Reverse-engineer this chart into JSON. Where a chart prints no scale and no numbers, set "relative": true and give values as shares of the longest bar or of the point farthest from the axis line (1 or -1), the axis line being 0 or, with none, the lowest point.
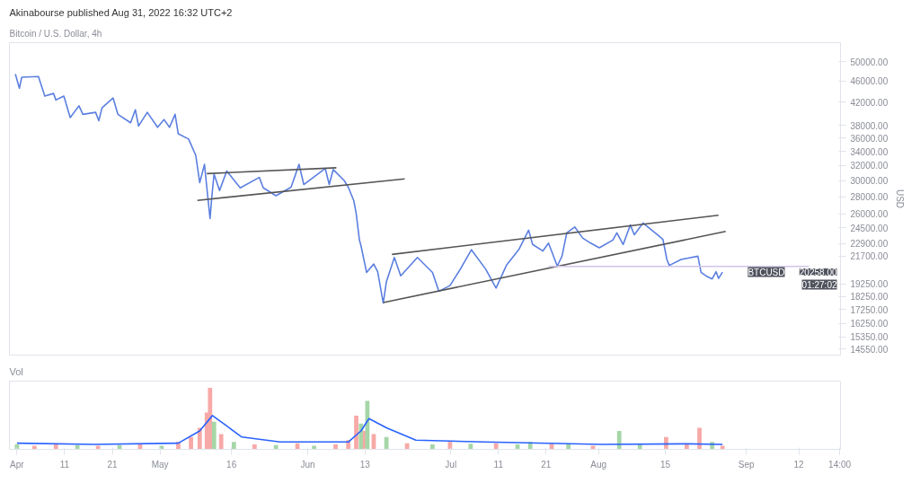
{
  "chart_data": [
    {
      "type": "line",
      "title": "Akinabourse published Aug 31, 2022 16:32 UTC+2",
      "subtitle": "Bitcoin / U.S. Dollar, 4h",
      "ylabel": "USD",
      "log": "y",
      "grid": false,
      "tick_labels": "y",
      "xlim": [
        "2022-03-30T10:00",
        "2022-09-20T18:00"
      ],
      "ylim": [
        14190,
        54230
      ],
      "yticks": [
        {
          "value": 14550,
          "label": "14550.00"
        },
        {
          "value": 15350,
          "label": "15350.00"
        },
        {
          "value": 16250,
          "label": "16250.00"
        },
        {
          "value": 17250,
          "label": "17250.00"
        },
        {
          "value": 18250,
          "label": "18250.00"
        },
        {
          "value": 19250,
          "label": "19250.00"
        },
        {
          "value": 21700,
          "label": "21700.00"
        },
        {
          "value": 22900,
          "label": "22900.00"
        },
        {
          "value": 24500,
          "label": "24500.00"
        },
        {
          "value": 26000,
          "label": "26000.00"
        },
        {
          "value": 28000,
          "label": "28000.00"
        },
        {
          "value": 30000,
          "label": "30000.00"
        },
        {
          "value": 32000,
          "label": "32000.00"
        },
        {
          "value": 34000,
          "label": "34000.00"
        },
        {
          "value": 36000,
          "label": "36000.00"
        },
        {
          "value": 38000,
          "label": "38000.00"
        },
        {
          "value": 42000,
          "label": "42000.00"
        },
        {
          "value": 46000,
          "label": "46000.00"
        },
        {
          "value": 50000,
          "label": "50000.00"
        }
      ],
      "series": [
        {
          "color": "#5b7fe0",
          "x": [
            "2022-03-31T16:00",
            "2022-04-01T12:00",
            "2022-04-02",
            "2022-04-05T12:00",
            "2022-04-06T20:00",
            "2022-04-08T16:00",
            "2022-04-09T04:00",
            "2022-04-10T20:00",
            "2022-04-12T04:00",
            "2022-04-14",
            "2022-04-14T20:00",
            "2022-04-17T12:00",
            "2022-04-18T04:00",
            "2022-04-18T20:00",
            "2022-04-21T04:00",
            "2022-04-22T04:00",
            "2022-04-24T20:00",
            "2022-04-25T20:00",
            "2022-04-26T12:00",
            "2022-04-28T08:00",
            "2022-04-30T12:00",
            "2022-05-01T20:00",
            "2022-05-03",
            "2022-05-04T04:00",
            "2022-05-04T20:00",
            "2022-05-07",
            "2022-05-08T12:00",
            "2022-05-09T08:00",
            "2022-05-10T08:00",
            "2022-05-10T20:00",
            "2022-05-11T12:00",
            "2022-05-11T20:00",
            "2022-05-12T08:00",
            "2022-05-13T12:00",
            "2022-05-15",
            "2022-05-17T20:00",
            "2022-05-21T20:00",
            "2022-05-22T16:00",
            "2022-05-25T08:00",
            "2022-05-28T12:00",
            "2022-05-30T04:00",
            "2022-05-31T04:00",
            "2022-06-04T16:00",
            "2022-06-05T12:00",
            "2022-06-06T08:00",
            "2022-06-08T16:00",
            "2022-06-09T12:00",
            "2022-06-10T16:00",
            "2022-06-11T04:00",
            "2022-06-11T20:00",
            "2022-06-12T04:00",
            "2022-06-13T08:00",
            "2022-06-14T20:00",
            "2022-06-15T16:00",
            "2022-06-16T20:00",
            "2022-06-17T12:00",
            "2022-06-19T04:00",
            "2022-06-20T12:00",
            "2022-06-24",
            "2022-06-27T04:00",
            "2022-06-28T12:00",
            "2022-06-30T20:00",
            "2022-07-02T20:00",
            "2022-07-05T08:00",
            "2022-07-08T08:00",
            "2022-07-10T12:00",
            "2022-07-12T16:00",
            "2022-07-15T08:00",
            "2022-07-17T08:00",
            "2022-07-18T04:00",
            "2022-07-20T08:00",
            "2022-07-21T12:00",
            "2022-07-23T08:00",
            "2022-07-24T08:00",
            "2022-07-25T08:00",
            "2022-07-27",
            "2022-07-28T16:00",
            "2022-07-30T08:00",
            "2022-08-01T04:00",
            "2022-08-04",
            "2022-08-04T20:00",
            "2022-08-06T04:00",
            "2022-08-07T16:00",
            "2022-08-08T12:00",
            "2022-08-10T08:00",
            "2022-08-13T08:00",
            "2022-08-14T12:00",
            "2022-08-15T08:00",
            "2022-08-15T20:00",
            "2022-08-18T08:00",
            "2022-08-21T20:00",
            "2022-08-22T12:00",
            "2022-08-23T12:00",
            "2022-08-24T20:00",
            "2022-08-25T16:00",
            "2022-08-26T04:00",
            "2022-08-27"
          ],
          "values": [
            47400,
            44590,
            46760,
            46890,
            43120,
            43600,
            42400,
            43120,
            39320,
            41350,
            39870,
            40210,
            38780,
            41000,
            42760,
            39870,
            38450,
            40660,
            37920,
            40210,
            37710,
            38990,
            37710,
            39870,
            36670,
            35860,
            33440,
            29740,
            32160,
            29080,
            25500,
            27730,
            30840,
            28760,
            31270,
            29080,
            30410,
            29080,
            28120,
            29160,
            32160,
            29500,
            31620,
            29500,
            31450,
            29990,
            29160,
            27500,
            26010,
            23250,
            22680,
            20230,
            20970,
            20290,
            17740,
            19450,
            21570,
            19940,
            21570,
            20230,
            18660,
            19120,
            20400,
            22300,
            20510,
            18920,
            20850,
            22360,
            24250,
            22810,
            22180,
            22940,
            20800,
            21690,
            23980,
            24590,
            23450,
            22940,
            22490,
            23250,
            23980,
            22810,
            24800,
            23780,
            25010,
            23780,
            23320,
            21390,
            20850,
            21390,
            21690,
            20230,
            19940,
            19670,
            20290,
            19720,
            20258
          ]
        },
        {
          "color": "#555555",
          "x": [
            "2022-05-10T20:00",
            "2022-06-07"
          ],
          "values": [
            30920,
            31700
          ]
        },
        {
          "color": "#555555",
          "x": [
            "2022-05-08T20:00",
            "2022-06-21T08:00"
          ],
          "values": [
            27560,
            30230
          ]
        },
        {
          "color": "#555555",
          "x": [
            "2022-06-18T16:00",
            "2022-08-26T04:00"
          ],
          "values": [
            21860,
            25860
          ]
        },
        {
          "color": "#555555",
          "x": [
            "2022-06-16T20:00",
            "2022-08-27T16:00"
          ],
          "values": [
            17780,
            24120
          ]
        },
        {
          "color": "#d1c4e9",
          "x": [
            "2022-07-21T12:00",
            "2022-09-14T04:00"
          ],
          "values": [
            20760,
            20760
          ]
        }
      ],
      "annotations": [
        "BTCUSD",
        "20258.00",
        "01:27:02"
      ]
    },
    {
      "type": "bar",
      "title": "Vol",
      "relative": true,
      "grid": false,
      "tick_labels": "x",
      "xlim": [
        "2022-03-30T10:00",
        "2022-09-20T18:00"
      ],
      "xticks": [
        {
          "value": "2022-04-01",
          "label": "Apr"
        },
        {
          "value": "2022-04-11",
          "label": "11"
        },
        {
          "value": "2022-04-21",
          "label": "21"
        },
        {
          "value": "2022-05-01",
          "label": "May"
        },
        {
          "value": "2022-05-16",
          "label": "16"
        },
        {
          "value": "2022-06-01",
          "label": "Jun"
        },
        {
          "value": "2022-06-13",
          "label": "13"
        },
        {
          "value": "2022-07-01",
          "label": "Jul"
        },
        {
          "value": "2022-07-11",
          "label": "11"
        },
        {
          "value": "2022-07-21",
          "label": "21"
        },
        {
          "value": "2022-08-01",
          "label": "Aug"
        },
        {
          "value": "2022-08-15",
          "label": "15"
        },
        {
          "value": "2022-09-01",
          "label": "Sep"
        },
        {
          "value": "2022-09-12",
          "label": "12"
        },
        {
          "value": "2022-09-20T14:00",
          "label": "14:00"
        }
      ],
      "series": [
        {
          "type": "bar",
          "x": [
            "2022-04-01",
            "2022-04-04T16:00",
            "2022-04-09T04:00",
            "2022-04-13T16:00",
            "2022-04-18",
            "2022-04-22T12:00",
            "2022-04-26T20:00",
            "2022-05-01T08:00",
            "2022-05-04T20:00",
            "2022-05-07T12:00",
            "2022-05-09T08:00",
            "2022-05-10T20:00",
            "2022-05-11T12:00",
            "2022-05-12T08:00",
            "2022-05-13T20:00",
            "2022-05-16T12:00",
            "2022-05-20T20:00",
            "2022-05-25T08:00",
            "2022-05-29T20:00",
            "2022-06-02T08:00",
            "2022-06-06T20:00",
            "2022-06-09T12:00",
            "2022-06-11T04:00",
            "2022-06-12T04:00",
            "2022-06-13",
            "2022-06-13T12:00",
            "2022-06-14T20:00",
            "2022-06-17T12:00",
            "2022-06-21T20:00",
            "2022-06-27T04:00",
            "2022-06-30T20:00",
            "2022-07-05T04:00",
            "2022-07-10T12:00",
            "2022-07-15",
            "2022-07-17T16:00",
            "2022-07-22T04:00",
            "2022-07-25T16:00",
            "2022-07-30T20:00",
            "2022-08-05T08:00",
            "2022-08-09T16:00",
            "2022-08-15T04:00",
            "2022-08-19T12:00",
            "2022-08-22T04:00",
            "2022-08-24T20:00",
            "2022-08-27"
          ],
          "values": [
            0.08,
            0.06,
            0.09,
            0.07,
            0.06,
            0.07,
            0.08,
            0.06,
            0.12,
            0.2,
            0.35,
            0.6,
            1,
            0.45,
            0.25,
            0.12,
            0.08,
            0.07,
            0.1,
            0.06,
            0.08,
            0.15,
            0.55,
            0.42,
            0.3,
            0.79,
            0.25,
            0.2,
            0.1,
            0.08,
            0.12,
            0.09,
            0.1,
            0.08,
            0.12,
            0.09,
            0.08,
            0.06,
            0.3,
            0.08,
            0.2,
            0.08,
            0.35,
            0.12,
            0.06
          ],
          "colors": [
            "#a5d6a7",
            "#f7a9a7",
            "#f7a9a7",
            "#a5d6a7",
            "#f7a9a7",
            "#a5d6a7",
            "#f7a9a7",
            "#a5d6a7",
            "#f7a9a7",
            "#f7a9a7",
            "#f7a9a7",
            "#f7a9a7",
            "#f7a9a7",
            "#a5d6a7",
            "#f7a9a7",
            "#a5d6a7",
            "#f7a9a7",
            "#a5d6a7",
            "#f7a9a7",
            "#a5d6a7",
            "#f7a9a7",
            "#f7a9a7",
            "#f7a9a7",
            "#a5d6a7",
            "#f7a9a7",
            "#a5d6a7",
            "#f7a9a7",
            "#a5d6a7",
            "#f7a9a7",
            "#a5d6a7",
            "#f7a9a7",
            "#a5d6a7",
            "#f7a9a7",
            "#a5d6a7",
            "#a5d6a7",
            "#f7a9a7",
            "#a5d6a7",
            "#f7a9a7",
            "#a5d6a7",
            "#a5d6a7",
            "#f7a9a7",
            "#f7a9a7",
            "#f7a9a7",
            "#a5d6a7",
            "#f7a9a7"
          ]
        },
        {
          "type": "line",
          "color": "#2962ff",
          "x": [
            "2022-04-01",
            "2022-04-17T04:00",
            "2022-05-04T20:00",
            "2022-05-09T08:00",
            "2022-05-12",
            "2022-05-14T16:00",
            "2022-05-18T04:00",
            "2022-05-26T04:00",
            "2022-06-09T12:00",
            "2022-06-12T04:00",
            "2022-06-13T20:00",
            "2022-06-17T12:00",
            "2022-06-23T16:00",
            "2022-07-07T20:00",
            "2022-08-01T16:00",
            "2022-08-19T12:00",
            "2022-08-27"
          ],
          "values": [
            0.1,
            0.08,
            0.1,
            0.3,
            0.55,
            0.4,
            0.2,
            0.12,
            0.12,
            0.3,
            0.5,
            0.35,
            0.15,
            0.12,
            0.08,
            0.09,
            0.08
          ]
        }
      ]
    }
  ]
}
